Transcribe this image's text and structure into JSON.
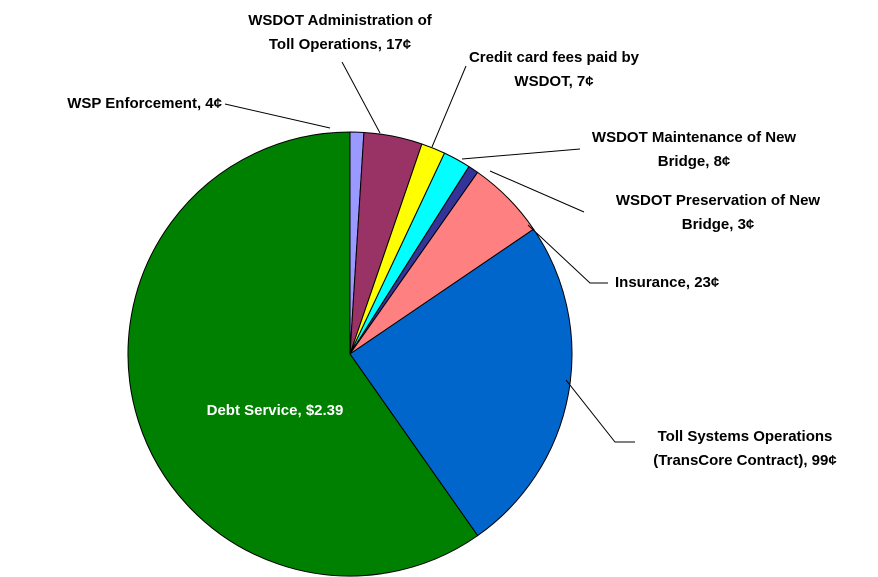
{
  "chart_data": {
    "type": "pie",
    "title": "",
    "unit": "cents",
    "start_angle_deg": -90,
    "direction": "clockwise",
    "slices": [
      {
        "id": "wsp",
        "label_lines": [
          "WSP Enforcement, 4¢"
        ],
        "value": 4,
        "color": "#9999ff"
      },
      {
        "id": "admin",
        "label_lines": [
          "WSDOT  Administration of",
          "Toll Operations, 17¢"
        ],
        "value": 17,
        "color": "#993366"
      },
      {
        "id": "ccfees",
        "label_lines": [
          "Credit card fees paid by",
          "WSDOT, 7¢"
        ],
        "value": 7,
        "color": "#ffff00"
      },
      {
        "id": "maint",
        "label_lines": [
          "WSDOT Maintenance of New",
          "Bridge, 8¢"
        ],
        "value": 8,
        "color": "#00ffff"
      },
      {
        "id": "preserv",
        "label_lines": [
          "WSDOT Preservation of New",
          "Bridge, 3¢"
        ],
        "value": 3,
        "color": "#333399"
      },
      {
        "id": "insur",
        "label_lines": [
          "Insurance, 23¢"
        ],
        "value": 23,
        "color": "#ff8080"
      },
      {
        "id": "tollsys",
        "label_lines": [
          "Toll Systems Operations",
          "(TransCore Contract), 99¢"
        ],
        "value": 99,
        "color": "#0066cc"
      },
      {
        "id": "debt",
        "label_lines": [
          "Debt Service, $2.39"
        ],
        "value": 239,
        "color": "#008000"
      }
    ]
  }
}
